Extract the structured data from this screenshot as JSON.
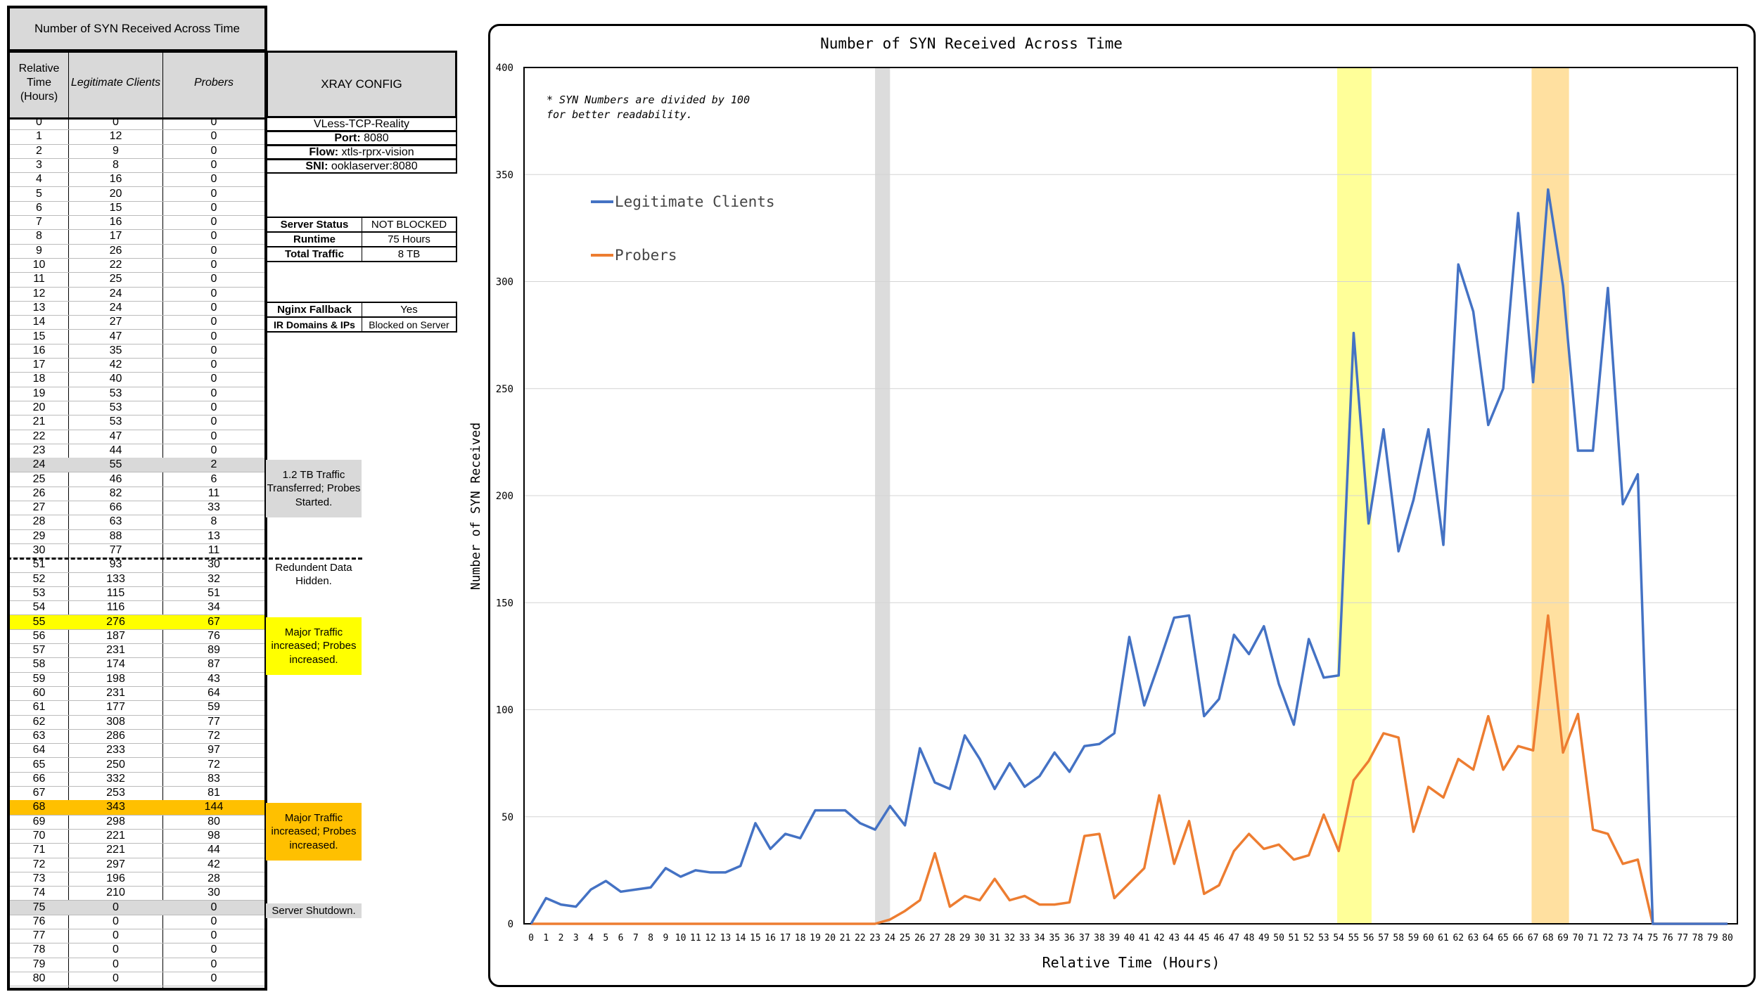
{
  "table": {
    "title": "Number of SYN Received Across Time",
    "headers": {
      "time": "Relative Time (Hours)",
      "legit": "Legitimate Clients",
      "probers": "Probers"
    },
    "rows": [
      [
        "0",
        "0",
        "0"
      ],
      [
        "1",
        "12",
        "0"
      ],
      [
        "2",
        "9",
        "0"
      ],
      [
        "3",
        "8",
        "0"
      ],
      [
        "4",
        "16",
        "0"
      ],
      [
        "5",
        "20",
        "0"
      ],
      [
        "6",
        "15",
        "0"
      ],
      [
        "7",
        "16",
        "0"
      ],
      [
        "8",
        "17",
        "0"
      ],
      [
        "9",
        "26",
        "0"
      ],
      [
        "10",
        "22",
        "0"
      ],
      [
        "11",
        "25",
        "0"
      ],
      [
        "12",
        "24",
        "0"
      ],
      [
        "13",
        "24",
        "0"
      ],
      [
        "14",
        "27",
        "0"
      ],
      [
        "15",
        "47",
        "0"
      ],
      [
        "16",
        "35",
        "0"
      ],
      [
        "17",
        "42",
        "0"
      ],
      [
        "18",
        "40",
        "0"
      ],
      [
        "19",
        "53",
        "0"
      ],
      [
        "20",
        "53",
        "0"
      ],
      [
        "21",
        "53",
        "0"
      ],
      [
        "22",
        "47",
        "0"
      ],
      [
        "23",
        "44",
        "0"
      ],
      [
        "24",
        "55",
        "2"
      ],
      [
        "25",
        "46",
        "6"
      ],
      [
        "26",
        "82",
        "11"
      ],
      [
        "27",
        "66",
        "33"
      ],
      [
        "28",
        "63",
        "8"
      ],
      [
        "29",
        "88",
        "13"
      ],
      [
        "30",
        "77",
        "11"
      ],
      [
        "51",
        "93",
        "30"
      ],
      [
        "52",
        "133",
        "32"
      ],
      [
        "53",
        "115",
        "51"
      ],
      [
        "54",
        "116",
        "34"
      ],
      [
        "55",
        "276",
        "67"
      ],
      [
        "56",
        "187",
        "76"
      ],
      [
        "57",
        "231",
        "89"
      ],
      [
        "58",
        "174",
        "87"
      ],
      [
        "59",
        "198",
        "43"
      ],
      [
        "60",
        "231",
        "64"
      ],
      [
        "61",
        "177",
        "59"
      ],
      [
        "62",
        "308",
        "77"
      ],
      [
        "63",
        "286",
        "72"
      ],
      [
        "64",
        "233",
        "97"
      ],
      [
        "65",
        "250",
        "72"
      ],
      [
        "66",
        "332",
        "83"
      ],
      [
        "67",
        "253",
        "81"
      ],
      [
        "68",
        "343",
        "144"
      ],
      [
        "69",
        "298",
        "80"
      ],
      [
        "70",
        "221",
        "98"
      ],
      [
        "71",
        "221",
        "44"
      ],
      [
        "72",
        "297",
        "42"
      ],
      [
        "73",
        "196",
        "28"
      ],
      [
        "74",
        "210",
        "30"
      ],
      [
        "75",
        "0",
        "0"
      ],
      [
        "76",
        "0",
        "0"
      ],
      [
        "77",
        "0",
        "0"
      ],
      [
        "78",
        "0",
        "0"
      ],
      [
        "79",
        "0",
        "0"
      ],
      [
        "80",
        "0",
        "0"
      ]
    ]
  },
  "xray": {
    "header": "XRAY CONFIG",
    "protocol": "VLess-TCP-Reality",
    "port_label": "Port:",
    "port_value": "8080",
    "flow_label": "Flow:",
    "flow_value": "xtls-rprx-vision",
    "sni_label": "SNI:",
    "sni_value": "ooklaserver:8080",
    "status": [
      {
        "k": "Server Status",
        "v": "NOT BLOCKED"
      },
      {
        "k": "Runtime",
        "v": "75 Hours"
      },
      {
        "k": "Total Traffic",
        "v": "8 TB"
      }
    ],
    "extra": [
      {
        "k": "Nginx Fallback",
        "v": "Yes"
      },
      {
        "k": "IR Domains & IPs",
        "v": "Blocked on Server"
      }
    ]
  },
  "notes": {
    "n24": "1.2 TB Traffic Transferred; Probes Started.",
    "n51": "Redundent Data Hidden.",
    "n55": "Major Traffic increased; Probes increased.",
    "n68": "Major Traffic increased; Probes increased.",
    "n75": "Server Shutdown."
  },
  "colors": {
    "legit": "#4472c4",
    "probers": "#ed7d31",
    "yellow": "#ffff00",
    "orange": "#ffc000",
    "grey": "#d9d9d9",
    "band_yellow": "#ffff99",
    "band_orange": "#ffe0a0",
    "band_grey": "#dcdcdc"
  },
  "chart_data": {
    "type": "line",
    "title": "Number of SYN Received Across Time",
    "xlabel": "Relative Time (Hours)",
    "ylabel": "Number of SYN Received",
    "annotation": "* SYN Numbers are divided by 100 for better readability.",
    "xlim": [
      0,
      80
    ],
    "ylim": [
      0,
      400
    ],
    "yticks": [
      0,
      50,
      100,
      150,
      200,
      250,
      300,
      350,
      400
    ],
    "grid": true,
    "legend_position": "top-left",
    "highlight_bands": [
      {
        "from": 23,
        "to": 24,
        "color": "grey"
      },
      {
        "from": 53.9,
        "to": 56.2,
        "color": "yellow"
      },
      {
        "from": 66.9,
        "to": 69.4,
        "color": "orange"
      }
    ],
    "x": [
      0,
      1,
      2,
      3,
      4,
      5,
      6,
      7,
      8,
      9,
      10,
      11,
      12,
      13,
      14,
      15,
      16,
      17,
      18,
      19,
      20,
      21,
      22,
      23,
      24,
      25,
      26,
      27,
      28,
      29,
      30,
      31,
      32,
      33,
      34,
      35,
      36,
      37,
      38,
      39,
      40,
      41,
      42,
      43,
      44,
      45,
      46,
      47,
      48,
      49,
      50,
      51,
      52,
      53,
      54,
      55,
      56,
      57,
      58,
      59,
      60,
      61,
      62,
      63,
      64,
      65,
      66,
      67,
      68,
      69,
      70,
      71,
      72,
      73,
      74,
      75,
      76,
      77,
      78,
      79,
      80
    ],
    "series": [
      {
        "name": "Legitimate Clients",
        "values": [
          0,
          12,
          9,
          8,
          16,
          20,
          15,
          16,
          17,
          26,
          22,
          25,
          24,
          24,
          27,
          47,
          35,
          42,
          40,
          53,
          53,
          53,
          47,
          44,
          55,
          46,
          82,
          66,
          63,
          88,
          77,
          63,
          75,
          64,
          69,
          80,
          71,
          83,
          84,
          89,
          134,
          102,
          122,
          143,
          144,
          97,
          105,
          135,
          126,
          139,
          112,
          93,
          133,
          115,
          116,
          276,
          187,
          231,
          174,
          198,
          231,
          177,
          308,
          286,
          233,
          250,
          332,
          253,
          343,
          298,
          221,
          221,
          297,
          196,
          210,
          0,
          0,
          0,
          0,
          0,
          0
        ]
      },
      {
        "name": "Probers",
        "values": [
          0,
          0,
          0,
          0,
          0,
          0,
          0,
          0,
          0,
          0,
          0,
          0,
          0,
          0,
          0,
          0,
          0,
          0,
          0,
          0,
          0,
          0,
          0,
          0,
          2,
          6,
          11,
          33,
          8,
          13,
          11,
          21,
          11,
          13,
          9,
          9,
          10,
          41,
          42,
          12,
          19,
          26,
          60,
          28,
          48,
          14,
          18,
          34,
          42,
          35,
          37,
          30,
          32,
          51,
          34,
          67,
          76,
          89,
          87,
          43,
          64,
          59,
          77,
          72,
          97,
          72,
          83,
          81,
          144,
          80,
          98,
          44,
          42,
          28,
          30,
          0,
          0,
          0,
          0,
          0,
          0
        ]
      }
    ]
  }
}
